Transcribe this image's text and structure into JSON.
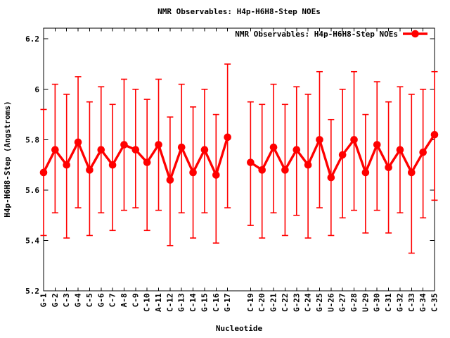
{
  "chart_data": {
    "type": "line",
    "title": "NMR Observables: H4p-H6H8-Step NOEs",
    "legend": "NMR Observables: H4p-H6H8-Step NOEs",
    "legend_position": "top-right-inside",
    "xlabel": "Nucleotide",
    "ylabel": "H4p-H6H8-Step (Angstroms)",
    "ylim": [
      5.2,
      6.24
    ],
    "yticks": [
      5.2,
      5.4,
      5.6,
      5.8,
      6.0,
      6.2
    ],
    "ytick_labels": [
      "5.2",
      "5.4",
      "5.6",
      "5.8",
      "6",
      "6.2"
    ],
    "grid": false,
    "series_color": "#ff0000",
    "axis_color": "#000000",
    "error_bars": true,
    "x_slots": 35,
    "points": [
      {
        "label": "G-1",
        "pos": 1,
        "y": 5.67,
        "lo": 5.42,
        "hi": 5.92
      },
      {
        "label": "G-2",
        "pos": 2,
        "y": 5.76,
        "lo": 5.51,
        "hi": 6.02
      },
      {
        "label": "C-3",
        "pos": 3,
        "y": 5.7,
        "lo": 5.41,
        "hi": 5.98
      },
      {
        "label": "G-4",
        "pos": 4,
        "y": 5.79,
        "lo": 5.53,
        "hi": 6.05
      },
      {
        "label": "C-5",
        "pos": 5,
        "y": 5.68,
        "lo": 5.42,
        "hi": 5.95
      },
      {
        "label": "G-6",
        "pos": 6,
        "y": 5.76,
        "lo": 5.51,
        "hi": 6.01
      },
      {
        "label": "C-7",
        "pos": 7,
        "y": 5.7,
        "lo": 5.44,
        "hi": 5.94
      },
      {
        "label": "A-8",
        "pos": 8,
        "y": 5.78,
        "lo": 5.52,
        "hi": 6.04
      },
      {
        "label": "C-9",
        "pos": 9,
        "y": 5.76,
        "lo": 5.53,
        "hi": 6.0
      },
      {
        "label": "C-10",
        "pos": 10,
        "y": 5.71,
        "lo": 5.44,
        "hi": 5.96
      },
      {
        "label": "A-11",
        "pos": 11,
        "y": 5.78,
        "lo": 5.52,
        "hi": 6.04
      },
      {
        "label": "C-12",
        "pos": 12,
        "y": 5.64,
        "lo": 5.38,
        "hi": 5.89
      },
      {
        "label": "G-13",
        "pos": 13,
        "y": 5.77,
        "lo": 5.51,
        "hi": 6.02
      },
      {
        "label": "C-14",
        "pos": 14,
        "y": 5.67,
        "lo": 5.41,
        "hi": 5.93
      },
      {
        "label": "G-15",
        "pos": 15,
        "y": 5.76,
        "lo": 5.51,
        "hi": 6.0
      },
      {
        "label": "C-16",
        "pos": 16,
        "y": 5.66,
        "lo": 5.39,
        "hi": 5.9
      },
      {
        "label": "G-17",
        "pos": 17,
        "y": 5.81,
        "lo": 5.53,
        "hi": 6.1
      },
      {
        "label": "C-19",
        "pos": 19,
        "y": 5.71,
        "lo": 5.46,
        "hi": 5.95
      },
      {
        "label": "C-20",
        "pos": 20,
        "y": 5.68,
        "lo": 5.41,
        "hi": 5.94
      },
      {
        "label": "G-21",
        "pos": 21,
        "y": 5.77,
        "lo": 5.51,
        "hi": 6.02
      },
      {
        "label": "C-22",
        "pos": 22,
        "y": 5.68,
        "lo": 5.42,
        "hi": 5.94
      },
      {
        "label": "G-23",
        "pos": 23,
        "y": 5.76,
        "lo": 5.5,
        "hi": 6.01
      },
      {
        "label": "C-24",
        "pos": 24,
        "y": 5.7,
        "lo": 5.41,
        "hi": 5.98
      },
      {
        "label": "G-25",
        "pos": 25,
        "y": 5.8,
        "lo": 5.53,
        "hi": 6.07
      },
      {
        "label": "U-26",
        "pos": 26,
        "y": 5.65,
        "lo": 5.42,
        "hi": 5.88
      },
      {
        "label": "G-27",
        "pos": 27,
        "y": 5.74,
        "lo": 5.49,
        "hi": 6.0
      },
      {
        "label": "G-28",
        "pos": 28,
        "y": 5.8,
        "lo": 5.52,
        "hi": 6.07
      },
      {
        "label": "U-29",
        "pos": 29,
        "y": 5.67,
        "lo": 5.43,
        "hi": 5.9
      },
      {
        "label": "G-30",
        "pos": 30,
        "y": 5.78,
        "lo": 5.52,
        "hi": 6.03
      },
      {
        "label": "C-31",
        "pos": 31,
        "y": 5.69,
        "lo": 5.43,
        "hi": 5.95
      },
      {
        "label": "G-32",
        "pos": 32,
        "y": 5.76,
        "lo": 5.51,
        "hi": 6.01
      },
      {
        "label": "C-33",
        "pos": 33,
        "y": 5.67,
        "lo": 5.35,
        "hi": 5.98
      },
      {
        "label": "G-34",
        "pos": 34,
        "y": 5.75,
        "lo": 5.49,
        "hi": 6.0
      },
      {
        "label": "C-35",
        "pos": 35,
        "y": 5.82,
        "lo": 5.56,
        "hi": 6.07
      }
    ]
  }
}
